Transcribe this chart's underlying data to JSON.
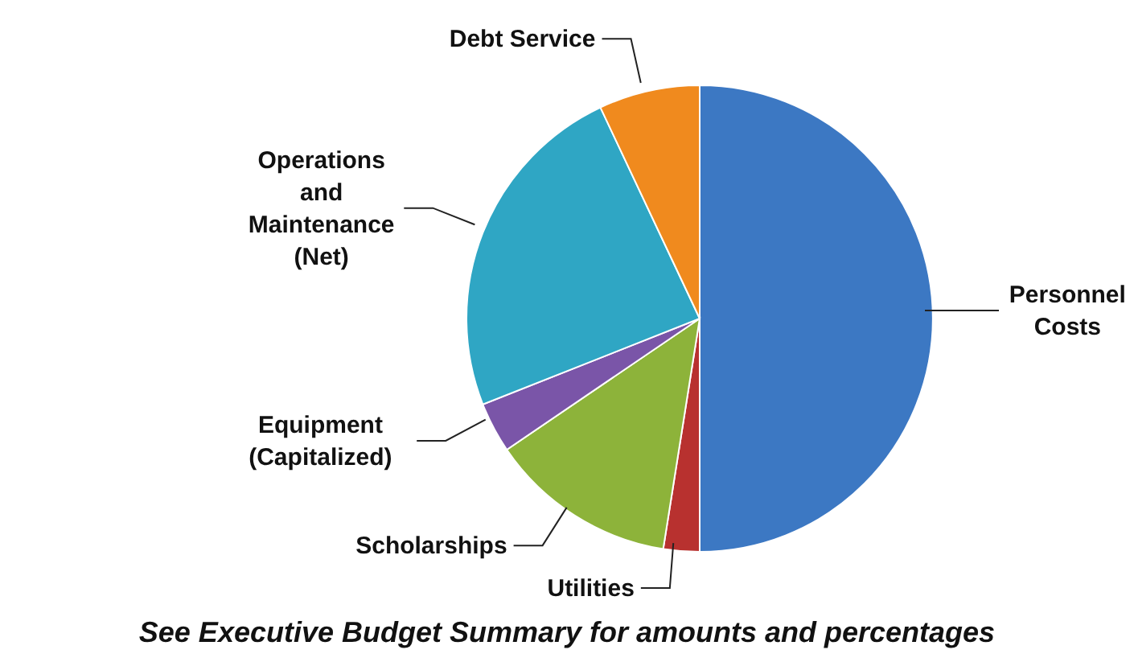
{
  "chart_data": {
    "type": "pie",
    "categories": [
      "Personnel Costs",
      "Utilities",
      "Scholarships",
      "Equipment (Capitalized)",
      "Operations and Maintenance (Net)",
      "Debt Service"
    ],
    "values": [
      50,
      2.5,
      13,
      3.5,
      24,
      7
    ],
    "colors": [
      "#3c78c3",
      "#b8312f",
      "#8db33a",
      "#7a55a8",
      "#2fa6c4",
      "#f08a1e"
    ],
    "annotations": [
      "See Executive Budget Summary for amounts and percentages"
    ]
  }
}
